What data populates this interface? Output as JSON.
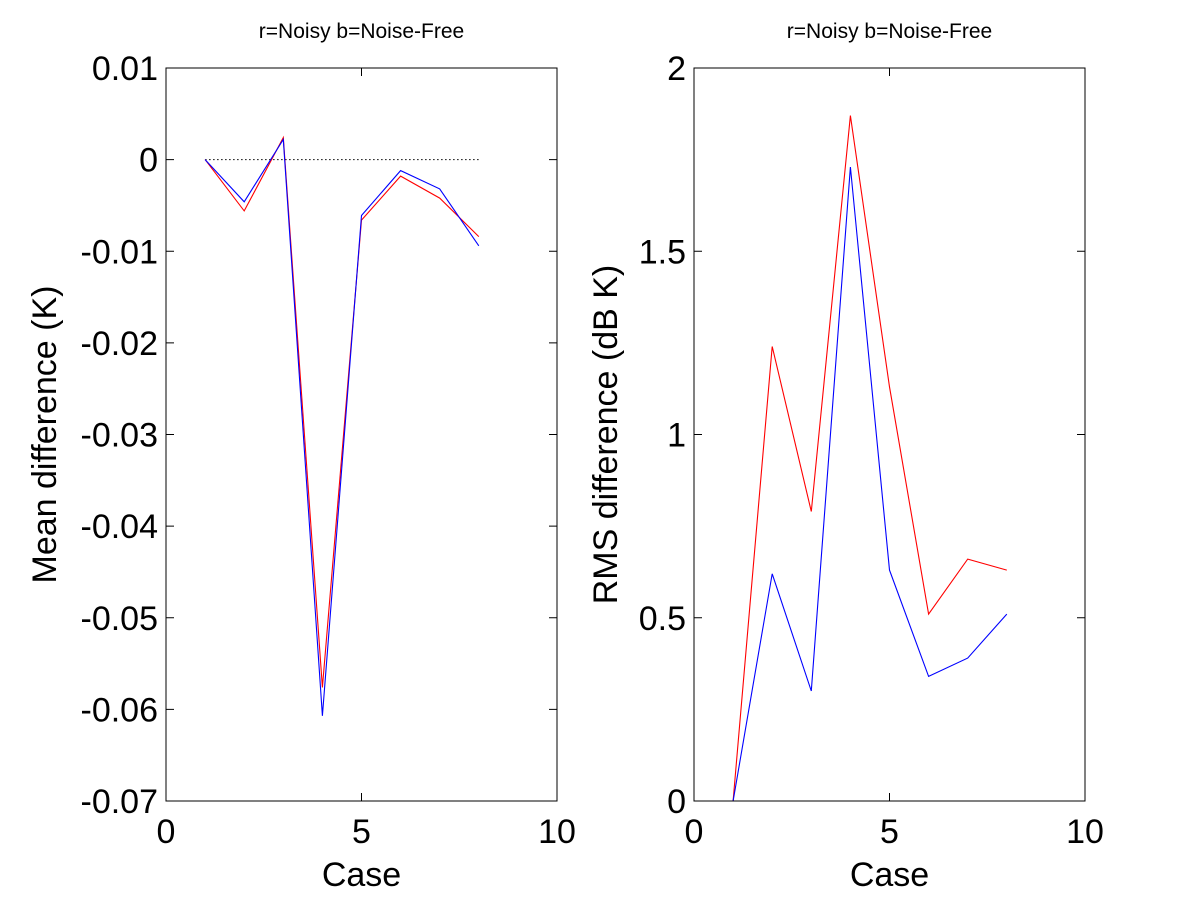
{
  "chart_data": [
    {
      "type": "line",
      "title": "r=Noisy  b=Noise-Free",
      "xlabel": "Case",
      "ylabel": "Mean difference (K)",
      "xlim": [
        0,
        10
      ],
      "ylim": [
        -0.07,
        0.01
      ],
      "xticks": [
        0,
        5,
        10
      ],
      "xtick_labels": [
        "0",
        "5",
        "10"
      ],
      "yticks": [
        0.01,
        0,
        -0.01,
        -0.02,
        -0.03,
        -0.04,
        -0.05,
        -0.06,
        -0.07
      ],
      "ytick_labels": [
        "0.01",
        "0",
        "-0.01",
        "-0.02",
        "-0.03",
        "-0.04",
        "-0.05",
        "-0.06",
        "-0.07"
      ],
      "grid": false,
      "x": [
        1,
        2,
        3,
        4,
        5,
        6,
        7,
        8
      ],
      "series": [
        {
          "color": "#ff0000",
          "values": [
            0.0,
            -0.0056,
            0.0024,
            -0.0576,
            -0.0066,
            -0.0018,
            -0.0042,
            -0.0084
          ]
        },
        {
          "color": "#0000ff",
          "values": [
            0.0,
            -0.0046,
            0.0022,
            -0.0607,
            -0.0061,
            -0.0012,
            -0.0032,
            -0.0094
          ]
        }
      ],
      "reference_line": {
        "y": 0,
        "x": [
          1,
          8
        ],
        "style": "dotted",
        "color": "#000000"
      }
    },
    {
      "type": "line",
      "title": "r=Noisy  b=Noise-Free",
      "xlabel": "Case",
      "ylabel": "RMS difference (dB K)",
      "xlim": [
        0,
        10
      ],
      "ylim": [
        0,
        2
      ],
      "xticks": [
        0,
        5,
        10
      ],
      "xtick_labels": [
        "0",
        "5",
        "10"
      ],
      "yticks": [
        0,
        0.5,
        1,
        1.5,
        2
      ],
      "ytick_labels": [
        "0",
        "0.5",
        "1",
        "1.5",
        "2"
      ],
      "grid": false,
      "x": [
        1,
        2,
        3,
        4,
        5,
        6,
        7,
        8
      ],
      "series": [
        {
          "color": "#ff0000",
          "values": [
            0.0,
            1.24,
            0.79,
            1.87,
            1.13,
            0.51,
            0.66,
            0.63
          ]
        },
        {
          "color": "#0000ff",
          "values": [
            0.0,
            0.62,
            0.3,
            1.73,
            0.63,
            0.34,
            0.39,
            0.51
          ]
        }
      ]
    }
  ]
}
